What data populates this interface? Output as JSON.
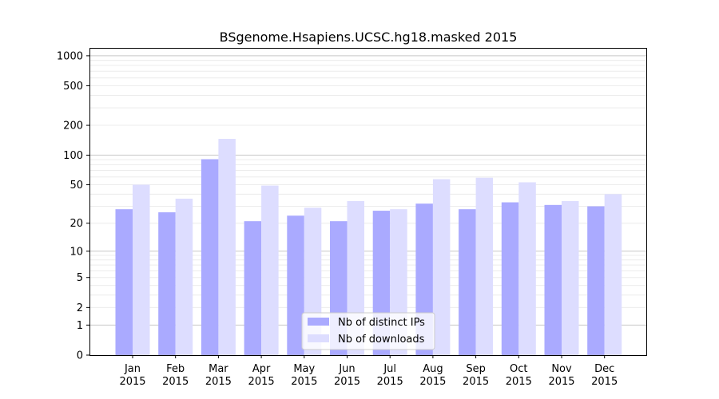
{
  "chart_data": {
    "type": "bar",
    "title": "BSgenome.Hsapiens.UCSC.hg18.masked 2015",
    "xlabel": "",
    "ylabel": "",
    "yscale": "log(1+y)",
    "ylim": [
      0,
      1200
    ],
    "grid": true,
    "legend_position": "bottom-center",
    "categories": [
      [
        "Jan",
        "2015"
      ],
      [
        "Feb",
        "2015"
      ],
      [
        "Mar",
        "2015"
      ],
      [
        "Apr",
        "2015"
      ],
      [
        "May",
        "2015"
      ],
      [
        "Jun",
        "2015"
      ],
      [
        "Jul",
        "2015"
      ],
      [
        "Aug",
        "2015"
      ],
      [
        "Sep",
        "2015"
      ],
      [
        "Oct",
        "2015"
      ],
      [
        "Nov",
        "2015"
      ],
      [
        "Dec",
        "2015"
      ]
    ],
    "yticks": [
      0,
      1,
      2,
      5,
      10,
      20,
      50,
      100,
      200,
      500,
      1000
    ],
    "series": [
      {
        "name": "Nb of distinct IPs",
        "color": "#aaaaff",
        "values": [
          28,
          26,
          91,
          21,
          24,
          21,
          27,
          32,
          28,
          33,
          31,
          30
        ]
      },
      {
        "name": "Nb of downloads",
        "color": "#ddddff",
        "values": [
          50,
          36,
          146,
          49,
          29,
          34,
          28,
          57,
          59,
          53,
          34,
          40
        ]
      }
    ]
  }
}
